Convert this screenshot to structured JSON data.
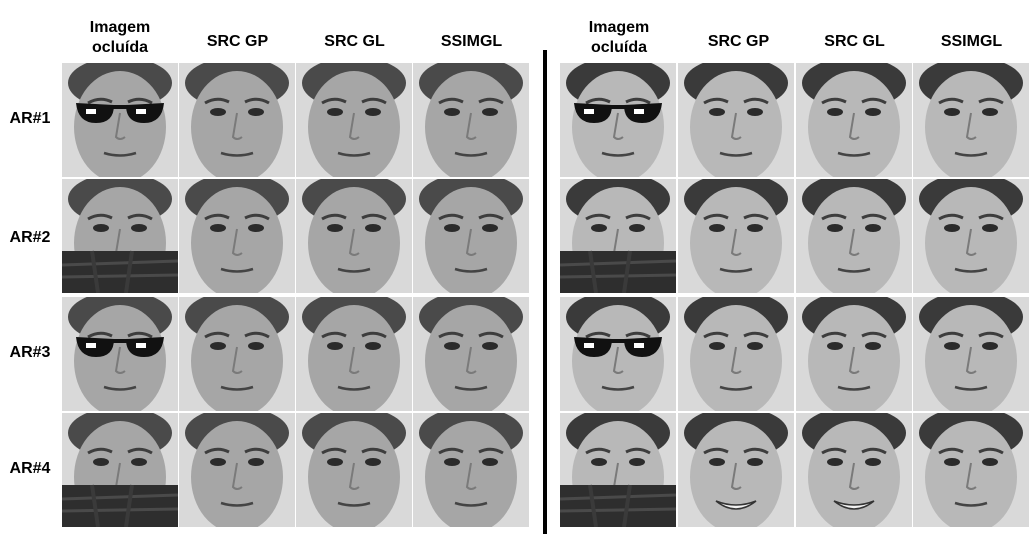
{
  "headers": [
    "Imagem ocluída",
    "SRC GP",
    "SRC GL",
    "SSIMGL"
  ],
  "rows": [
    "AR#1",
    "AR#2",
    "AR#3",
    "AR#4"
  ],
  "occlusions": [
    "sunglasses",
    "scarf",
    "sunglasses",
    "scarf"
  ],
  "colors": {
    "background": "#ffffff",
    "divider": "#000000"
  }
}
